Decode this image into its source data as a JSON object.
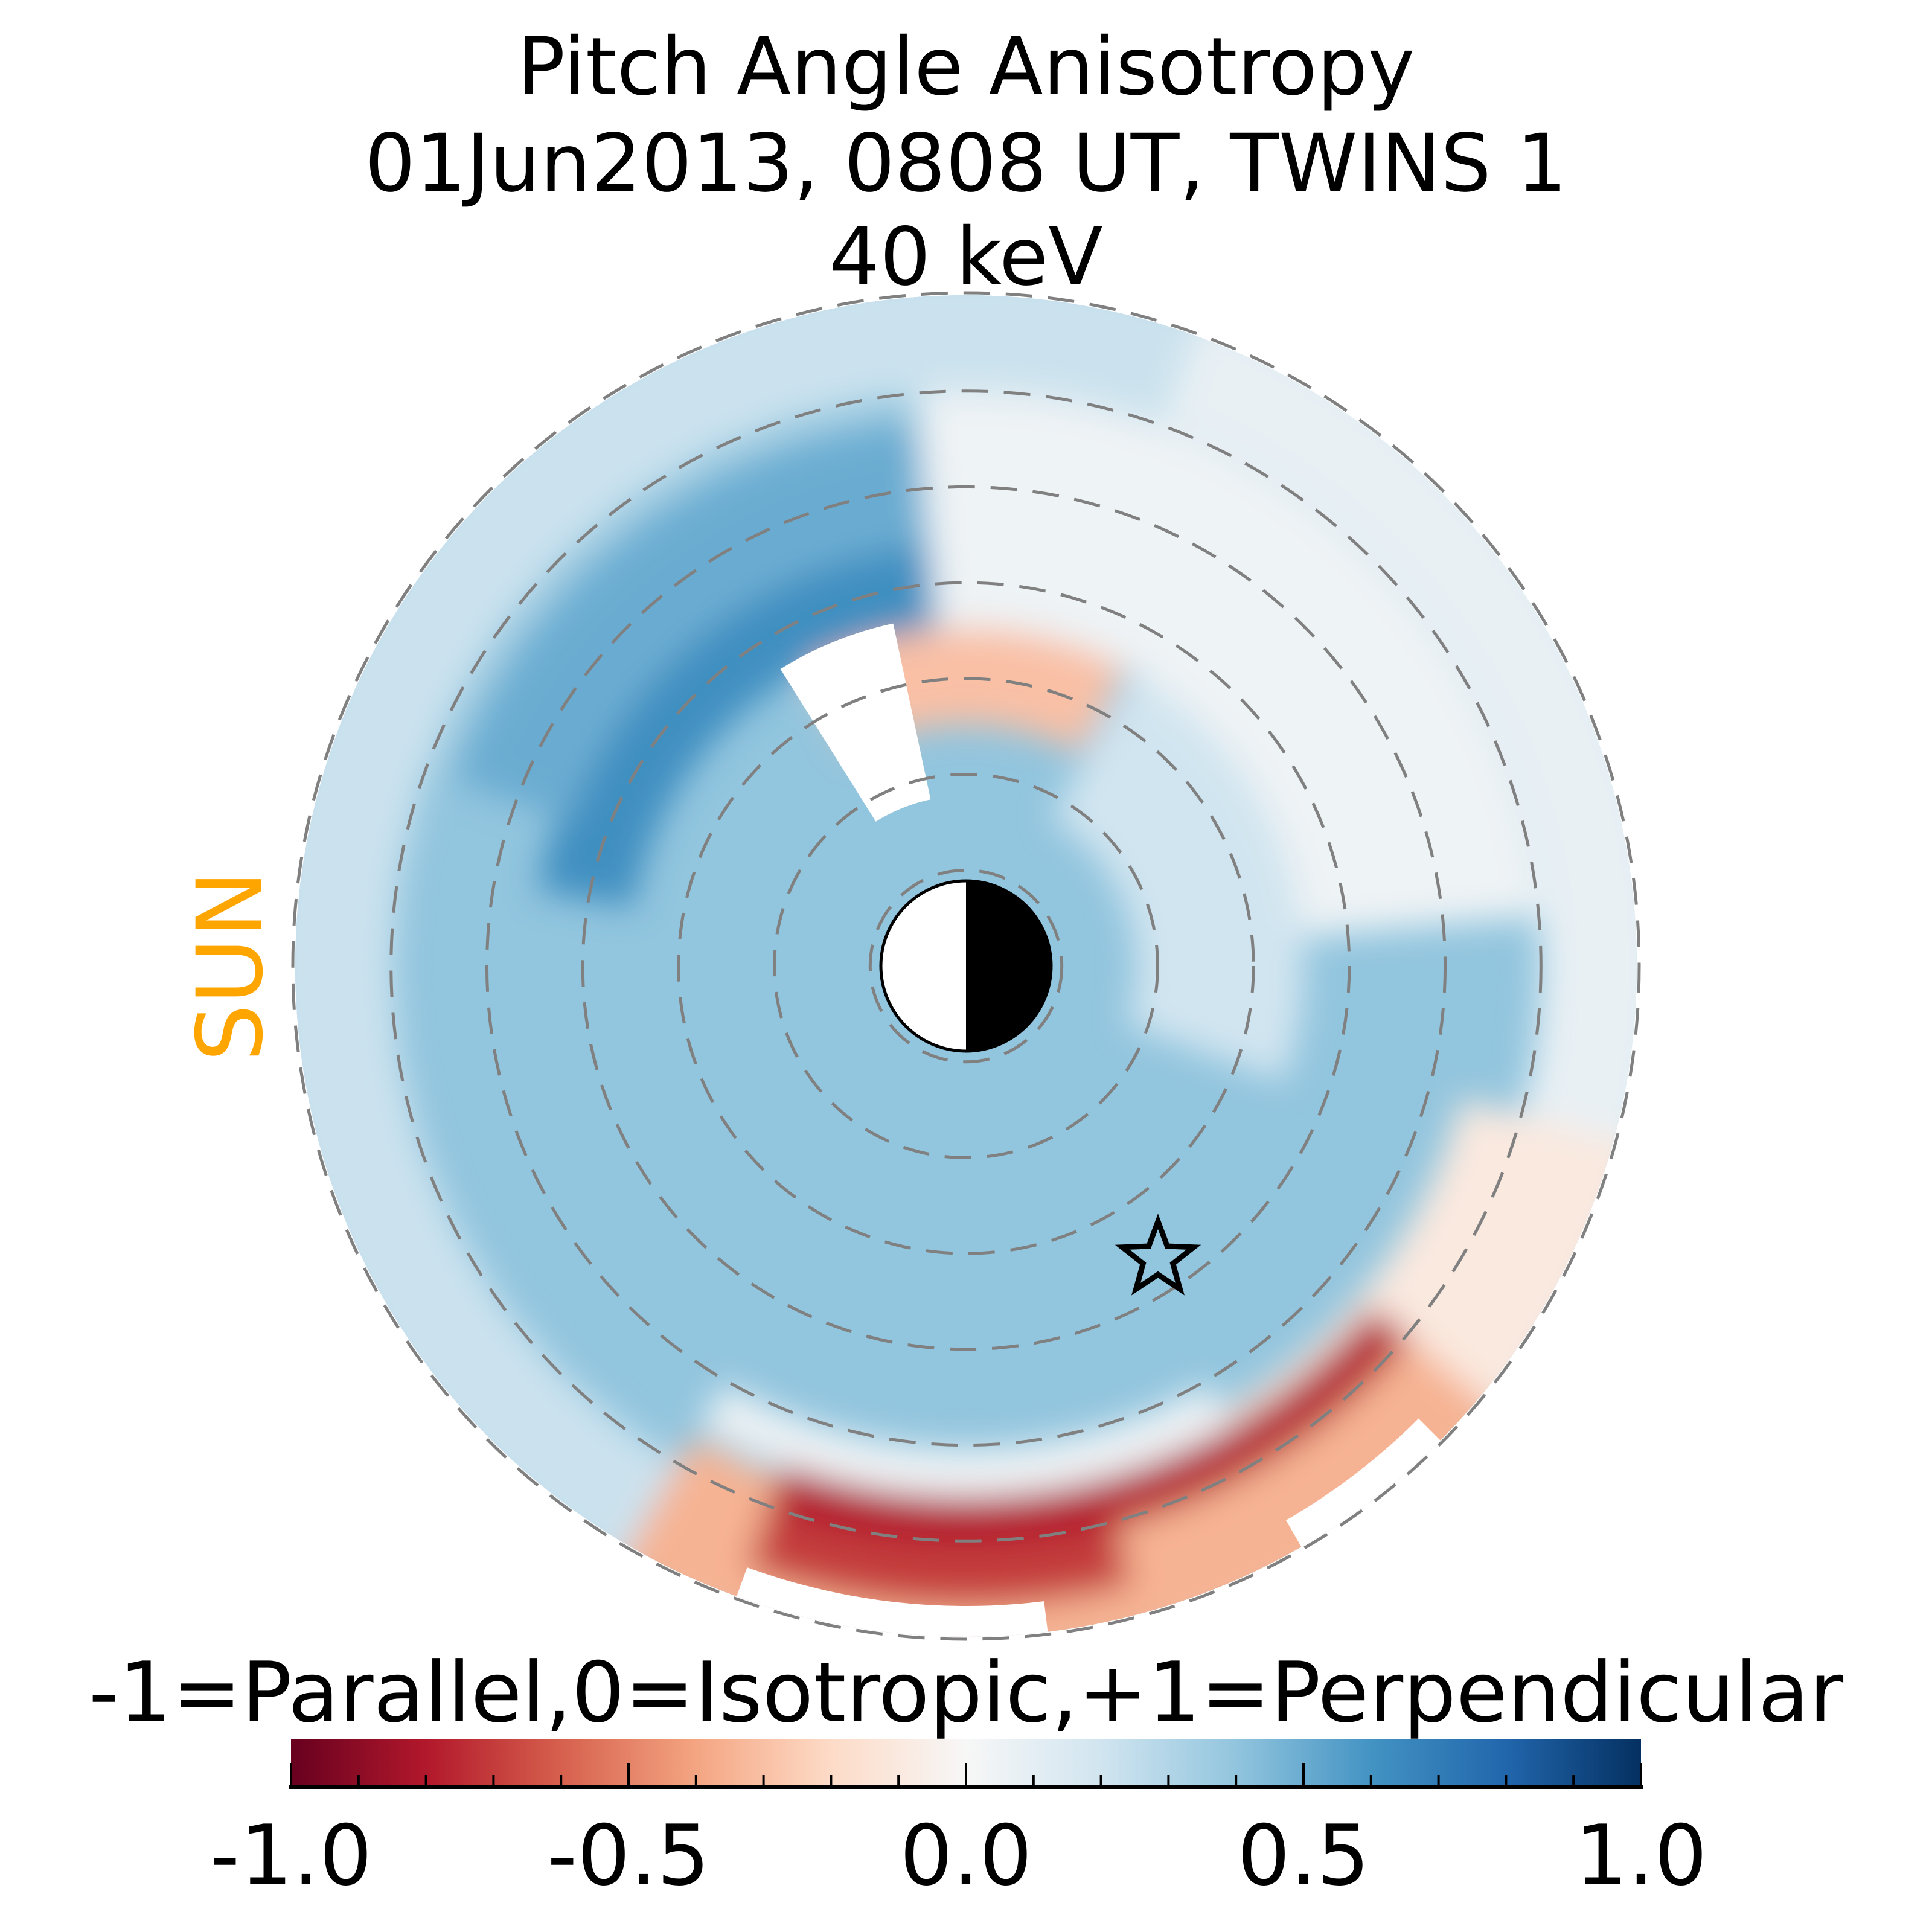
{
  "chart_data": {
    "type": "heatmap",
    "projection": "polar",
    "title": [
      "Pitch Angle Anisotropy",
      "01Jun2013, 0808 UT,  TWINS 1",
      "40 keV"
    ],
    "side_label": "SUN",
    "colorbar": {
      "label": "-1=Parallel,0=Isotropic,+1=Perpendicular",
      "range": [
        -1.0,
        1.0
      ],
      "major_ticks": [
        "-1.0",
        "-0.5",
        "0.0",
        "0.5",
        "1.0"
      ],
      "major_tick_values": [
        -1.0,
        -0.5,
        0.0,
        0.5,
        1.0
      ],
      "minor_step": 0.1,
      "colormap": "RdBu"
    },
    "dashed_circle_count": 7,
    "markers": [
      "earth-half-shaded",
      "star"
    ]
  },
  "colors": {
    "sun": "#FFA500",
    "grid": "#808080"
  }
}
